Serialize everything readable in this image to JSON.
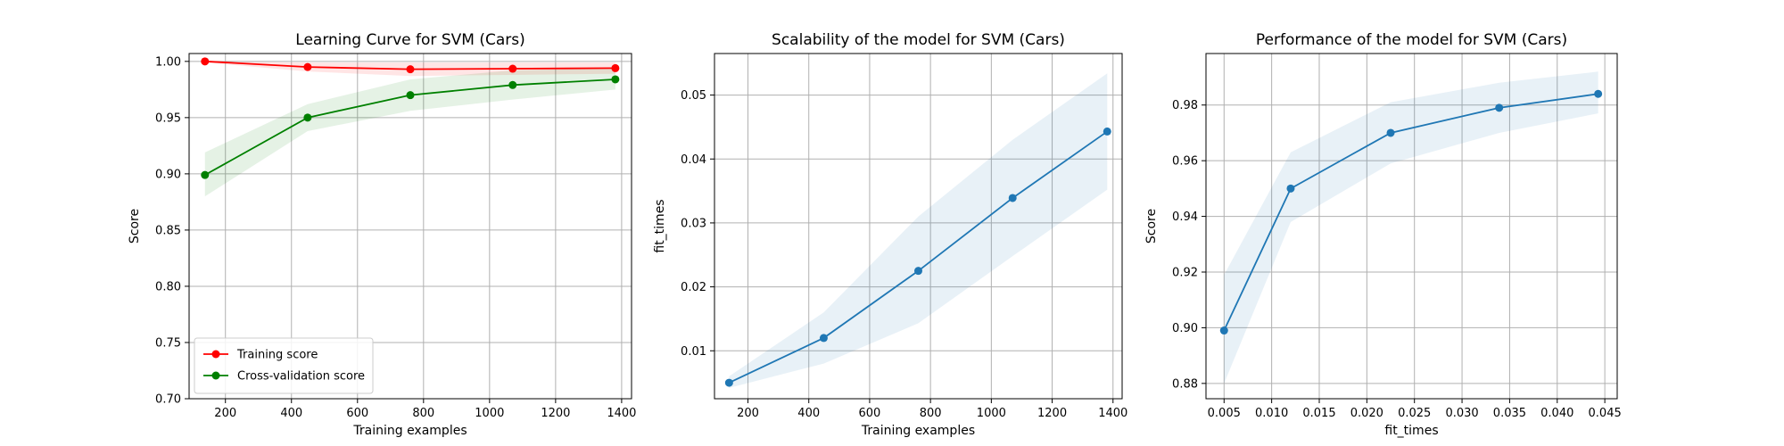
{
  "chart_data": [
    {
      "type": "line",
      "title": "Learning Curve for SVM (Cars)",
      "xlabel": "Training examples",
      "ylabel": "Score",
      "xlim": [
        90,
        1430
      ],
      "ylim": [
        0.7,
        1.007
      ],
      "xticks": [
        200,
        400,
        600,
        800,
        1000,
        1200,
        1400
      ],
      "yticks": [
        0.7,
        0.75,
        0.8,
        0.85,
        0.9,
        0.95,
        1.0
      ],
      "xtick_labels": [
        "200",
        "400",
        "600",
        "800",
        "1000",
        "1200",
        "1400"
      ],
      "ytick_labels": [
        "0.70",
        "0.75",
        "0.80",
        "0.85",
        "0.90",
        "0.95",
        "1.00"
      ],
      "grid": true,
      "legend_position": "lower-left",
      "x": [
        138,
        449,
        760,
        1070,
        1381
      ],
      "series": [
        {
          "name": "Training score",
          "color": "#ff0000",
          "values": [
            1.0,
            0.995,
            0.993,
            0.9935,
            0.994
          ],
          "band_low": [
            0.999,
            0.991,
            0.987,
            0.988,
            0.989
          ],
          "band_high": [
            1.0,
            0.999,
            0.999,
            0.999,
            0.999
          ]
        },
        {
          "name": "Cross-validation score",
          "color": "#008000",
          "values": [
            0.899,
            0.95,
            0.97,
            0.979,
            0.984
          ],
          "band_low": [
            0.88,
            0.938,
            0.956,
            0.966,
            0.975
          ],
          "band_high": [
            0.919,
            0.962,
            0.984,
            0.992,
            0.994
          ]
        }
      ]
    },
    {
      "type": "line",
      "title": "Scalability of the model for SVM (Cars)",
      "xlabel": "Training examples",
      "ylabel": "fit_times",
      "xlim": [
        90,
        1430
      ],
      "ylim": [
        0.0025,
        0.0565
      ],
      "xticks": [
        200,
        400,
        600,
        800,
        1000,
        1200,
        1400
      ],
      "yticks": [
        0.01,
        0.02,
        0.03,
        0.04,
        0.05
      ],
      "xtick_labels": [
        "200",
        "400",
        "600",
        "800",
        "1000",
        "1200",
        "1400"
      ],
      "ytick_labels": [
        "0.01",
        "0.02",
        "0.03",
        "0.04",
        "0.05"
      ],
      "grid": true,
      "x": [
        138,
        449,
        760,
        1070,
        1381
      ],
      "series": [
        {
          "color": "#1f77b4",
          "values": [
            0.005,
            0.012,
            0.0225,
            0.0339,
            0.0443
          ],
          "band_low": [
            0.0042,
            0.008,
            0.0143,
            0.0248,
            0.0352
          ],
          "band_high": [
            0.006,
            0.016,
            0.031,
            0.043,
            0.0534
          ]
        }
      ]
    },
    {
      "type": "line",
      "title": "Performance of the model for SVM (Cars)",
      "xlabel": "fit_times",
      "ylabel": "Score",
      "xlim": [
        0.0031,
        0.0463
      ],
      "ylim": [
        0.8745,
        0.9985
      ],
      "xticks": [
        0.005,
        0.01,
        0.015,
        0.02,
        0.025,
        0.03,
        0.035,
        0.04,
        0.045
      ],
      "yticks": [
        0.88,
        0.9,
        0.92,
        0.94,
        0.96,
        0.98
      ],
      "xtick_labels": [
        "0.005",
        "0.010",
        "0.015",
        "0.020",
        "0.025",
        "0.030",
        "0.035",
        "0.040",
        "0.045"
      ],
      "ytick_labels": [
        "0.88",
        "0.90",
        "0.92",
        "0.94",
        "0.96",
        "0.98"
      ],
      "grid": true,
      "x": [
        0.005,
        0.012,
        0.0225,
        0.0339,
        0.0443
      ],
      "series": [
        {
          "color": "#1f77b4",
          "values": [
            0.899,
            0.95,
            0.97,
            0.979,
            0.984
          ],
          "band_low": [
            0.88,
            0.938,
            0.959,
            0.97,
            0.977
          ],
          "band_high": [
            0.919,
            0.963,
            0.981,
            0.988,
            0.992
          ]
        }
      ]
    }
  ]
}
